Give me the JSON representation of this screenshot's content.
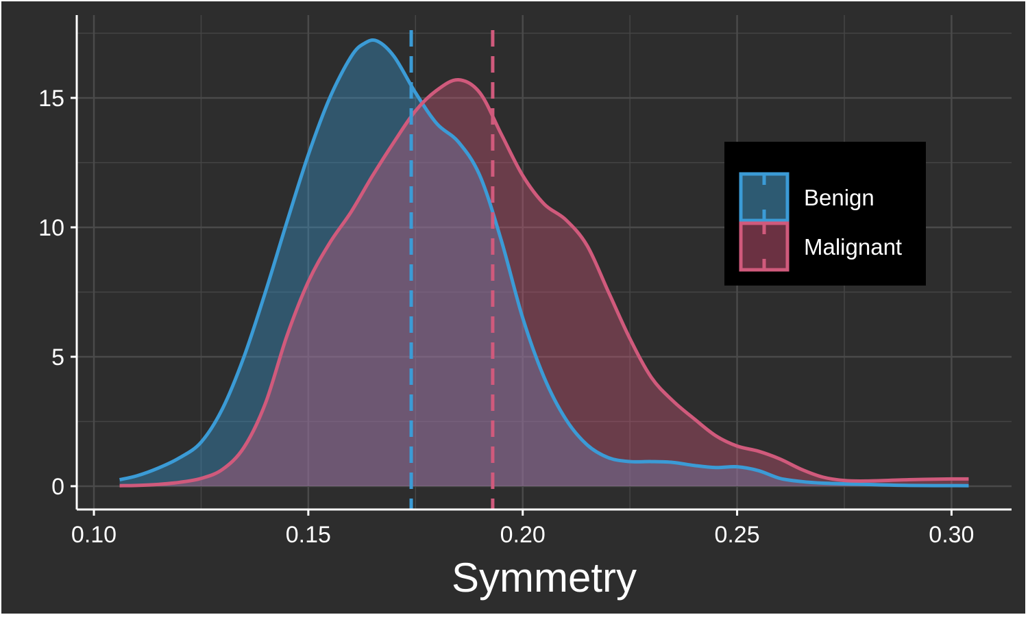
{
  "chart_data": {
    "type": "area",
    "xlabel": "Symmetry",
    "ylabel": "",
    "xlim": [
      0.096,
      0.314
    ],
    "ylim": [
      -0.9,
      18.2
    ],
    "x_ticks": [
      {
        "value": 0.1,
        "label": "0.10"
      },
      {
        "value": 0.15,
        "label": "0.15"
      },
      {
        "value": 0.2,
        "label": "0.20"
      },
      {
        "value": 0.25,
        "label": "0.25"
      },
      {
        "value": 0.3,
        "label": "0.30"
      }
    ],
    "y_ticks": [
      {
        "value": 0,
        "label": "0"
      },
      {
        "value": 5,
        "label": "5"
      },
      {
        "value": 10,
        "label": "10"
      },
      {
        "value": 15,
        "label": "15"
      }
    ],
    "grid": true,
    "legend_position": "right",
    "series": [
      {
        "name": "Benign",
        "color": "#3b9bd6",
        "fill": "#2d5a72",
        "mean": 0.174,
        "x": [
          0.106,
          0.11,
          0.115,
          0.12,
          0.125,
          0.13,
          0.135,
          0.14,
          0.145,
          0.15,
          0.155,
          0.16,
          0.163,
          0.166,
          0.17,
          0.175,
          0.18,
          0.185,
          0.19,
          0.195,
          0.2,
          0.205,
          0.21,
          0.215,
          0.22,
          0.225,
          0.23,
          0.235,
          0.24,
          0.245,
          0.25,
          0.255,
          0.26,
          0.265,
          0.27,
          0.28,
          0.29,
          0.304
        ],
        "y": [
          0.25,
          0.4,
          0.7,
          1.1,
          1.7,
          3.0,
          5.0,
          7.5,
          10.2,
          12.8,
          15.0,
          16.6,
          17.1,
          17.2,
          16.6,
          15.2,
          14.0,
          13.3,
          12.0,
          9.5,
          6.5,
          4.2,
          2.6,
          1.6,
          1.1,
          0.95,
          0.95,
          0.92,
          0.8,
          0.72,
          0.75,
          0.6,
          0.3,
          0.18,
          0.12,
          0.07,
          0.03,
          0.02
        ]
      },
      {
        "name": "Malignant",
        "color": "#d05a7c",
        "fill": "#6b3142",
        "mean": 0.193,
        "x": [
          0.106,
          0.11,
          0.115,
          0.12,
          0.125,
          0.13,
          0.135,
          0.14,
          0.145,
          0.15,
          0.155,
          0.16,
          0.165,
          0.17,
          0.175,
          0.18,
          0.185,
          0.19,
          0.195,
          0.2,
          0.205,
          0.21,
          0.215,
          0.22,
          0.225,
          0.23,
          0.235,
          0.24,
          0.245,
          0.25,
          0.255,
          0.26,
          0.265,
          0.27,
          0.275,
          0.28,
          0.29,
          0.3,
          0.304
        ],
        "y": [
          0.02,
          0.03,
          0.07,
          0.15,
          0.3,
          0.65,
          1.5,
          3.2,
          5.8,
          7.9,
          9.4,
          10.6,
          12.0,
          13.3,
          14.5,
          15.3,
          15.7,
          15.2,
          13.6,
          12.0,
          10.9,
          10.3,
          9.3,
          7.5,
          5.7,
          4.2,
          3.3,
          2.6,
          1.95,
          1.55,
          1.35,
          1.05,
          0.65,
          0.35,
          0.22,
          0.2,
          0.25,
          0.28,
          0.28
        ]
      }
    ]
  }
}
